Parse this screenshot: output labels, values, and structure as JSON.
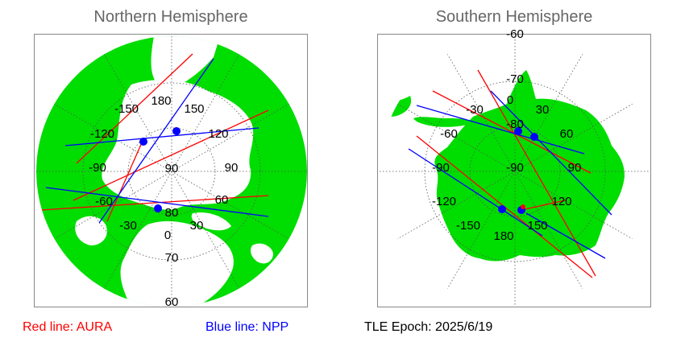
{
  "titles": {
    "north": "Northern Hemisphere",
    "south": "Southern Hemisphere"
  },
  "legend": {
    "red_label": "Red line: AURA",
    "blue_label": "Blue line: NPP",
    "epoch": "TLE Epoch: 2025/6/19"
  },
  "colors": {
    "land": "#00dd00",
    "ocean": "#ffffff",
    "aura": "#ff0000",
    "npp": "#0000ff",
    "grid": "#555555"
  },
  "north_labels": {
    "lon_180": "180",
    "lon_m150": "-150",
    "lon_150": "150",
    "lon_m120": "-120",
    "lon_120": "120",
    "lon_m90": "-90",
    "lon_90": "90",
    "lon_m60": "-60",
    "lon_60": "60",
    "lon_m30": "-30",
    "lon_30": "30",
    "lon_0": "0",
    "lat_90": "90",
    "lat_80": "80",
    "lat_70": "70",
    "lat_60": "60"
  },
  "south_labels": {
    "lat_m60": "-60",
    "lat_m70": "-70",
    "lat_m80": "-80",
    "lat_m90": "-90",
    "lon_m30": "-30",
    "lon_0": "0",
    "lon_30": "30",
    "lon_m60": "-60",
    "lon_60": "60",
    "lon_m90": "-90",
    "lon_90": "90",
    "lon_m120": "-120",
    "lon_120": "120",
    "lon_m150": "-150",
    "lon_150": "150",
    "lon_180": "180"
  }
}
